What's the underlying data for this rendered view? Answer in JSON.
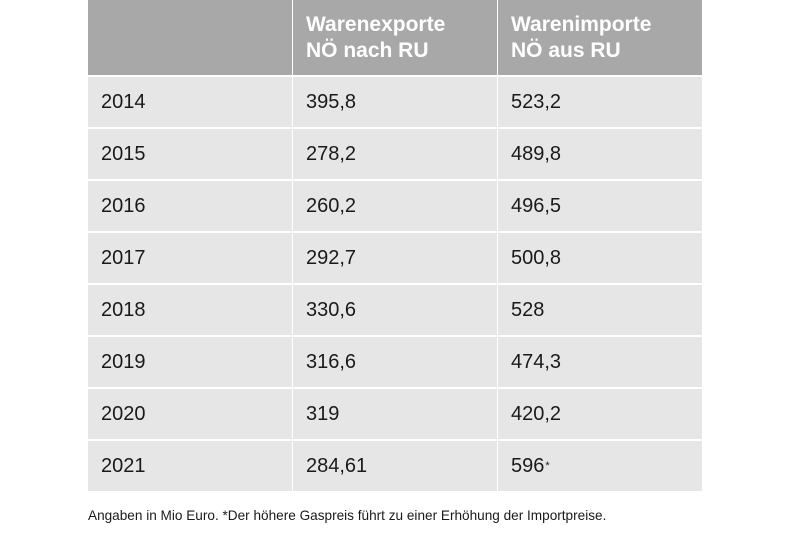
{
  "table": {
    "header": [
      [
        "Warenexporte",
        "NÖ nach RU"
      ],
      [
        "Warenimporte",
        "NÖ aus RU"
      ]
    ],
    "rows": [
      [
        "2014",
        "395,8",
        "523,2"
      ],
      [
        "2015",
        "278,2",
        "489,8"
      ],
      [
        "2016",
        "260,2",
        "496,5"
      ],
      [
        "2017",
        "292,7",
        "500,8"
      ],
      [
        "2018",
        "330,6",
        "528"
      ],
      [
        "2019",
        "316,6",
        "474,3"
      ],
      [
        "2020",
        "319",
        "420,2"
      ],
      [
        "2021",
        "284,61",
        "596"
      ]
    ],
    "footnote_marker": "*"
  },
  "footnote": "Angaben in Mio Euro. *Der höhere Gaspreis führt zu einer Erhöhung der Importpreise."
}
